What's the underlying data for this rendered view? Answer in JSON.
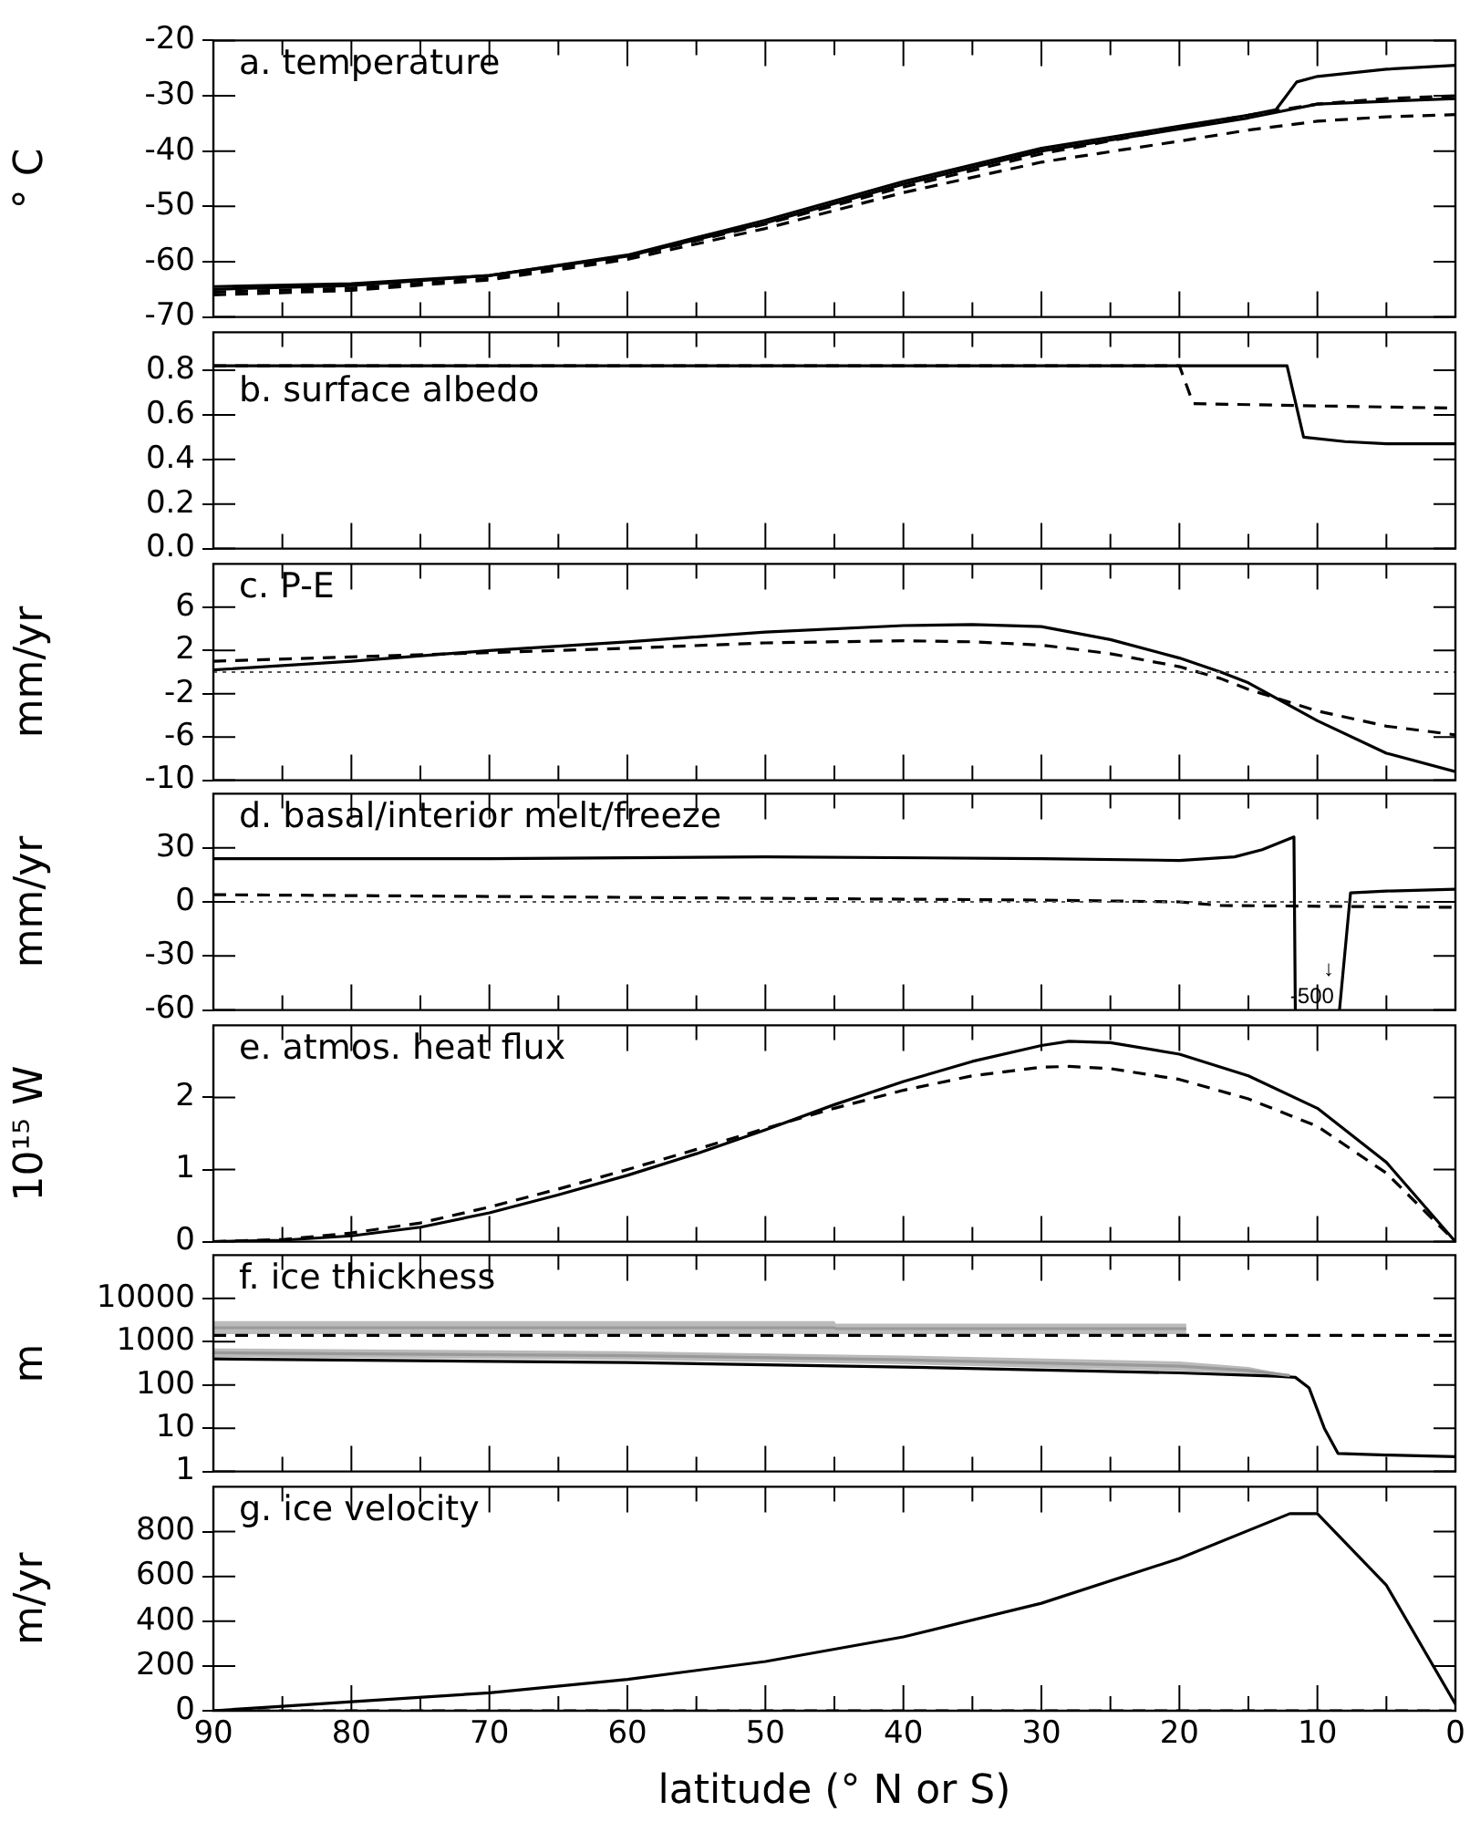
{
  "chart_data": [
    {
      "type": "line",
      "title": "a. temperature",
      "ylabel": "° C",
      "xlim": [
        90,
        0
      ],
      "xticks": [
        0,
        {
          "value": 5,
          "label": null
        },
        10,
        {
          "value": 15,
          "label": null
        },
        20,
        {
          "value": 25,
          "label": null
        },
        30,
        {
          "value": 35,
          "label": null
        },
        40,
        {
          "value": 45,
          "label": null
        },
        50,
        {
          "value": 55,
          "label": null
        },
        60,
        {
          "value": 65,
          "label": null
        },
        70,
        {
          "value": 75,
          "label": null
        },
        80,
        {
          "value": 85,
          "label": null
        },
        90
      ],
      "ylim": [
        -70,
        -20
      ],
      "yticks": [
        -70,
        -60,
        -50,
        -40,
        -30,
        -20
      ],
      "tick_labels": "y",
      "series": [
        {
          "color": "#000000",
          "line_style": "solid",
          "x": [
            90,
            80,
            70,
            60,
            50,
            40,
            30,
            20,
            15,
            10,
            5,
            0
          ],
          "values": [
            -64.5,
            -64,
            -62.5,
            -59,
            -53,
            -46,
            -40,
            -36,
            -34,
            -31.5,
            -31,
            -30.5
          ]
        },
        {
          "color": "#000000",
          "line_style": "solid",
          "x": [
            90,
            80,
            70,
            60,
            50,
            40,
            30,
            20,
            15,
            13,
            11.5,
            10,
            5,
            0
          ],
          "values": [
            -65,
            -64.3,
            -62.5,
            -58.8,
            -52.5,
            -45.5,
            -39.5,
            -35.5,
            -33.5,
            -32.5,
            -27.5,
            -26.5,
            -25.2,
            -24.5
          ]
        },
        {
          "color": "#000000",
          "line_style": "dashed",
          "x": [
            90,
            80,
            70,
            60,
            50,
            40,
            30,
            20,
            15,
            10,
            5,
            0
          ],
          "values": [
            -65.5,
            -64.8,
            -63,
            -59.2,
            -53.2,
            -46.5,
            -40.5,
            -35.8,
            -33.5,
            -31.5,
            -30.5,
            -30
          ]
        },
        {
          "color": "#000000",
          "line_style": "dashed",
          "x": [
            90,
            80,
            70,
            60,
            50,
            40,
            30,
            20,
            15,
            10,
            5,
            0
          ],
          "values": [
            -66,
            -65.2,
            -63.3,
            -59.6,
            -54,
            -47.5,
            -42,
            -38.2,
            -36.2,
            -34.6,
            -33.8,
            -33.4
          ]
        }
      ]
    },
    {
      "type": "line",
      "title": "b. surface albedo",
      "xlim": [
        90,
        0
      ],
      "xticks": [
        0,
        {
          "value": 5,
          "label": null
        },
        10,
        {
          "value": 15,
          "label": null
        },
        20,
        {
          "value": 25,
          "label": null
        },
        30,
        {
          "value": 35,
          "label": null
        },
        40,
        {
          "value": 45,
          "label": null
        },
        50,
        {
          "value": 55,
          "label": null
        },
        60,
        {
          "value": 65,
          "label": null
        },
        70,
        {
          "value": 75,
          "label": null
        },
        80,
        {
          "value": 85,
          "label": null
        },
        90
      ],
      "ylim": [
        0,
        0.97
      ],
      "yticks": [
        {
          "value": 0,
          "label": "0.0"
        },
        0.2,
        0.4,
        0.6,
        0.8
      ],
      "tick_labels": "y",
      "series": [
        {
          "color": "#000000",
          "line_style": "solid",
          "x": [
            90,
            12.2,
            11,
            8,
            5,
            0
          ],
          "values": [
            0.82,
            0.82,
            0.5,
            0.48,
            0.47,
            0.47
          ]
        },
        {
          "color": "#000000",
          "line_style": "dashed",
          "x": [
            90,
            20,
            19,
            10,
            0
          ],
          "values": [
            0.82,
            0.82,
            0.65,
            0.64,
            0.63
          ]
        }
      ]
    },
    {
      "type": "line",
      "title": "c. P-E",
      "ylabel": "mm/yr",
      "xlim": [
        90,
        0
      ],
      "xticks": [
        0,
        {
          "value": 5,
          "label": null
        },
        10,
        {
          "value": 15,
          "label": null
        },
        20,
        {
          "value": 25,
          "label": null
        },
        30,
        {
          "value": 35,
          "label": null
        },
        40,
        {
          "value": 45,
          "label": null
        },
        50,
        {
          "value": 55,
          "label": null
        },
        60,
        {
          "value": 65,
          "label": null
        },
        70,
        {
          "value": 75,
          "label": null
        },
        80,
        {
          "value": 85,
          "label": null
        },
        90
      ],
      "ylim": [
        -10,
        10
      ],
      "yticks": [
        -10,
        -6,
        -2,
        2,
        6
      ],
      "tick_labels": "y",
      "ref_lines": [
        {
          "axis": "y",
          "value": 0,
          "color": "#555555",
          "line_style": "dotted"
        }
      ],
      "series": [
        {
          "color": "#000000",
          "line_style": "solid",
          "x": [
            90,
            80,
            70,
            60,
            50,
            40,
            35,
            30,
            25,
            20,
            17,
            15,
            10,
            5,
            0
          ],
          "values": [
            0.2,
            1,
            2,
            2.8,
            3.7,
            4.3,
            4.4,
            4.2,
            3,
            1.3,
            0,
            -1,
            -4.5,
            -7.5,
            -9.2
          ]
        },
        {
          "color": "#000000",
          "line_style": "dashed",
          "x": [
            90,
            80,
            70,
            60,
            50,
            40,
            35,
            30,
            25,
            20,
            17,
            15,
            10,
            5,
            0
          ],
          "values": [
            1,
            1.4,
            1.8,
            2.2,
            2.7,
            2.9,
            2.8,
            2.5,
            1.7,
            0.5,
            -0.6,
            -1.6,
            -3.6,
            -5,
            -5.8
          ]
        }
      ]
    },
    {
      "type": "line",
      "title": "d. basal/interior melt/freeze",
      "ylabel": "mm/yr",
      "xlim": [
        90,
        0
      ],
      "xticks": [
        0,
        {
          "value": 5,
          "label": null
        },
        10,
        {
          "value": 15,
          "label": null
        },
        20,
        {
          "value": 25,
          "label": null
        },
        30,
        {
          "value": 35,
          "label": null
        },
        40,
        {
          "value": 45,
          "label": null
        },
        50,
        {
          "value": 55,
          "label": null
        },
        60,
        {
          "value": 65,
          "label": null
        },
        70,
        {
          "value": 75,
          "label": null
        },
        80,
        {
          "value": 85,
          "label": null
        },
        90
      ],
      "ylim": [
        -60,
        60
      ],
      "yticks": [
        -60,
        -30,
        0,
        30
      ],
      "tick_labels": "y",
      "ref_lines": [
        {
          "axis": "y",
          "value": 0,
          "color": "#555555",
          "line_style": "dotted"
        }
      ],
      "annotations": [
        {
          "text": "↓",
          "x": 8.4,
          "y": -60
        },
        {
          "text": "-500",
          "x": 8.4,
          "y": -60
        }
      ],
      "series": [
        {
          "color": "#000000",
          "line_style": "solid",
          "x": [
            90,
            70,
            50,
            30,
            20,
            16,
            14,
            11.7,
            11.6,
            10,
            8.4,
            7.6,
            5,
            0
          ],
          "values": [
            24,
            24,
            25,
            24,
            23,
            25,
            29,
            36,
            -60,
            null,
            -60,
            5,
            6,
            7
          ]
        },
        {
          "color": "#000000",
          "line_style": "dashed",
          "x": [
            90,
            50,
            30,
            20,
            17,
            0
          ],
          "values": [
            4,
            2,
            1,
            0,
            -2,
            -3
          ]
        }
      ]
    },
    {
      "type": "line",
      "title": "e. atmos. heat flux",
      "ylabel": "10¹⁵ W",
      "xlim": [
        90,
        0
      ],
      "xticks": [
        0,
        {
          "value": 5,
          "label": null
        },
        10,
        {
          "value": 15,
          "label": null
        },
        20,
        {
          "value": 25,
          "label": null
        },
        30,
        {
          "value": 35,
          "label": null
        },
        40,
        {
          "value": 45,
          "label": null
        },
        50,
        {
          "value": 55,
          "label": null
        },
        60,
        {
          "value": 65,
          "label": null
        },
        70,
        {
          "value": 75,
          "label": null
        },
        80,
        {
          "value": 85,
          "label": null
        },
        90
      ],
      "ylim": [
        0,
        3
      ],
      "yticks": [
        0,
        1,
        2
      ],
      "tick_labels": "y",
      "series": [
        {
          "color": "#000000",
          "line_style": "solid",
          "x": [
            90,
            85,
            80,
            75,
            70,
            65,
            60,
            55,
            50,
            45,
            40,
            35,
            30,
            28,
            25,
            20,
            15,
            10,
            5,
            0
          ],
          "values": [
            0,
            0.02,
            0.08,
            0.2,
            0.4,
            0.65,
            0.92,
            1.22,
            1.55,
            1.9,
            2.22,
            2.5,
            2.72,
            2.78,
            2.76,
            2.6,
            2.3,
            1.85,
            1.1,
            0
          ]
        },
        {
          "color": "#000000",
          "line_style": "dashed",
          "x": [
            90,
            85,
            80,
            75,
            70,
            65,
            60,
            55,
            50,
            45,
            40,
            35,
            30,
            28,
            25,
            20,
            15,
            10,
            5,
            0
          ],
          "values": [
            0,
            0.03,
            0.12,
            0.26,
            0.48,
            0.73,
            1,
            1.28,
            1.57,
            1.85,
            2.1,
            2.3,
            2.42,
            2.43,
            2.4,
            2.25,
            1.98,
            1.6,
            0.95,
            0
          ]
        }
      ]
    },
    {
      "type": "line",
      "title": "f. ice thickness",
      "ylabel": "m",
      "log": "y",
      "xlim": [
        90,
        0
      ],
      "xticks": [
        0,
        {
          "value": 5,
          "label": null
        },
        10,
        {
          "value": 15,
          "label": null
        },
        20,
        {
          "value": 25,
          "label": null
        },
        30,
        {
          "value": 35,
          "label": null
        },
        40,
        {
          "value": 45,
          "label": null
        },
        50,
        {
          "value": 55,
          "label": null
        },
        60,
        {
          "value": 65,
          "label": null
        },
        70,
        {
          "value": 75,
          "label": null
        },
        80,
        {
          "value": 85,
          "label": null
        },
        90
      ],
      "ylim": [
        1,
        100000
      ],
      "yticks": [
        1,
        10,
        100,
        1000,
        10000
      ],
      "tick_labels": "y",
      "series": [
        {
          "color": "#999999",
          "line_style": "solid",
          "x": [
            90,
            45,
            44.9,
            19.5
          ],
          "values": [
            2100,
            2100,
            2000,
            2000
          ],
          "lower": [
            1500,
            1500,
            1500,
            1500
          ],
          "upper": [
            3000,
            3000,
            2600,
            2600
          ]
        },
        {
          "color": "#999999",
          "line_style": "solid",
          "x": [
            90,
            60,
            40,
            20,
            15,
            12
          ],
          "values": [
            555,
            477,
            380,
            271,
            216,
            165
          ],
          "lower": [
            440,
            380,
            300,
            210,
            180,
            160
          ],
          "upper": [
            700,
            600,
            480,
            350,
            260,
            170
          ]
        },
        {
          "color": "#000000",
          "line_style": "solid",
          "x": [
            90,
            60,
            40,
            20,
            13,
            11.6,
            10.6,
            9.5,
            8.5,
            5,
            0
          ],
          "values": [
            400,
            330,
            260,
            190,
            160,
            150,
            85,
            10,
            2.6,
            2.4,
            2.2
          ]
        },
        {
          "color": "#000000",
          "line_style": "dashed",
          "x": [
            90,
            20,
            0
          ],
          "values": [
            1400,
            1400,
            1400
          ]
        }
      ]
    },
    {
      "type": "line",
      "title": "g. ice velocity",
      "ylabel": "m/yr",
      "xlabel": "latitude (° N or S)",
      "xlim": [
        90,
        0
      ],
      "xticks": [
        0,
        {
          "value": 5,
          "label": null
        },
        10,
        {
          "value": 15,
          "label": null
        },
        20,
        {
          "value": 25,
          "label": null
        },
        30,
        {
          "value": 35,
          "label": null
        },
        40,
        {
          "value": 45,
          "label": null
        },
        50,
        {
          "value": 55,
          "label": null
        },
        60,
        {
          "value": 65,
          "label": null
        },
        70,
        {
          "value": 75,
          "label": null
        },
        80,
        {
          "value": 85,
          "label": null
        },
        90
      ],
      "ylim": [
        0,
        1000
      ],
      "yticks": [
        0,
        200,
        400,
        600,
        800
      ],
      "series": [
        {
          "color": "#000000",
          "line_style": "solid",
          "x": [
            90,
            85,
            80,
            70,
            60,
            50,
            40,
            30,
            20,
            12,
            10,
            5,
            0
          ],
          "values": [
            0,
            20,
            40,
            80,
            140,
            220,
            330,
            480,
            680,
            880,
            880,
            560,
            30
          ]
        },
        {
          "color": "#000000",
          "line_style": "dashed",
          "x": [
            90,
            0
          ],
          "values": [
            0,
            0
          ]
        }
      ]
    }
  ]
}
